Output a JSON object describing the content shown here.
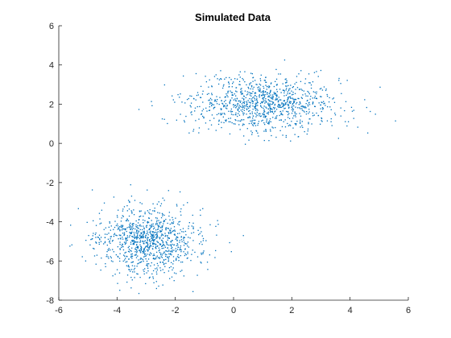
{
  "chart_data": {
    "type": "scatter",
    "title": "Simulated Data",
    "xlabel": "",
    "ylabel": "",
    "xlim": [
      -6,
      6
    ],
    "ylim": [
      -8,
      6
    ],
    "x_ticks": [
      "-6",
      "-4",
      "-2",
      "0",
      "2",
      "4",
      "6"
    ],
    "y_ticks": [
      "-8",
      "-6",
      "-4",
      "-2",
      "0",
      "2",
      "4",
      "6"
    ],
    "grid": false,
    "legend": "none",
    "marker_color": "#0072BD",
    "clusters": [
      {
        "center": [
          1,
          2
        ],
        "spread": [
          1.3,
          0.7
        ],
        "approx_count": 1000
      },
      {
        "center": [
          -3,
          -5
        ],
        "spread": [
          0.9,
          0.9
        ],
        "approx_count": 1000
      }
    ]
  }
}
